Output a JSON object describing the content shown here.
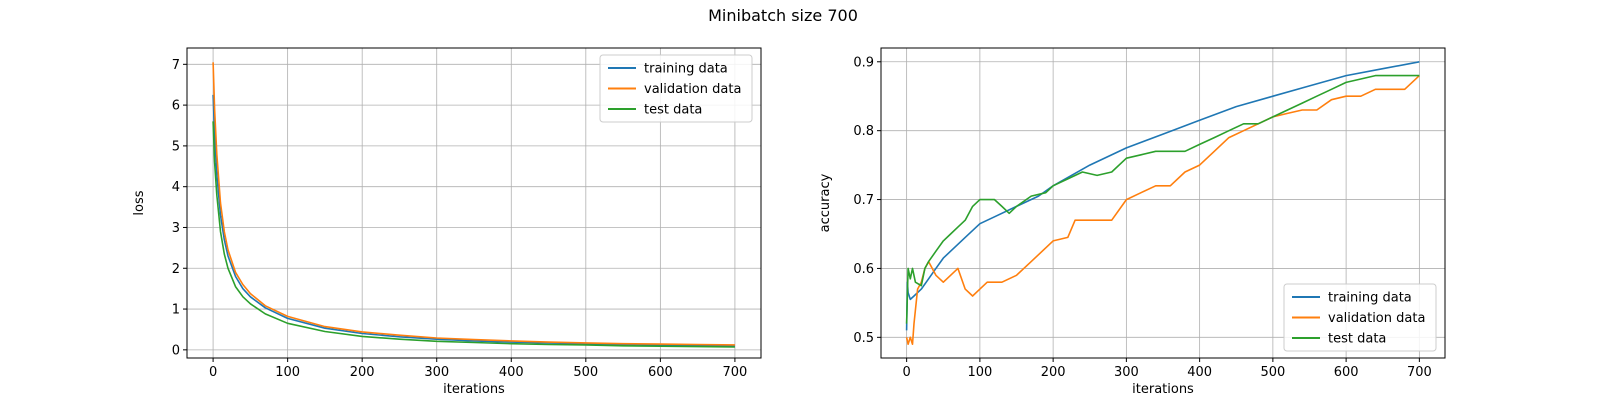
{
  "figure": {
    "title": "Minibatch size 700"
  },
  "chart_data": [
    {
      "type": "line",
      "title": "",
      "xlabel": "iterations",
      "ylabel": "loss",
      "xlim": [
        -35,
        735
      ],
      "ylim": [
        -0.2,
        7.4
      ],
      "xticks": [
        0,
        100,
        200,
        300,
        400,
        500,
        600,
        700
      ],
      "yticks": [
        0,
        1,
        2,
        3,
        4,
        5,
        6,
        7
      ],
      "grid": true,
      "legend_position": "top-right",
      "series": [
        {
          "name": "training data",
          "color": "#1f77b4",
          "points": [
            [
              0,
              6.25
            ],
            [
              2,
              5.3
            ],
            [
              5,
              4.3
            ],
            [
              10,
              3.3
            ],
            [
              15,
              2.7
            ],
            [
              20,
              2.3
            ],
            [
              30,
              1.8
            ],
            [
              40,
              1.5
            ],
            [
              50,
              1.3
            ],
            [
              70,
              1.03
            ],
            [
              100,
              0.77
            ],
            [
              150,
              0.53
            ],
            [
              200,
              0.4
            ],
            [
              250,
              0.32
            ],
            [
              300,
              0.26
            ],
            [
              350,
              0.22
            ],
            [
              400,
              0.19
            ],
            [
              450,
              0.17
            ],
            [
              500,
              0.15
            ],
            [
              550,
              0.13
            ],
            [
              600,
              0.12
            ],
            [
              650,
              0.11
            ],
            [
              700,
              0.1
            ]
          ]
        },
        {
          "name": "validation data",
          "color": "#ff7f0e",
          "points": [
            [
              0,
              7.05
            ],
            [
              2,
              5.9
            ],
            [
              5,
              4.8
            ],
            [
              10,
              3.6
            ],
            [
              15,
              2.9
            ],
            [
              20,
              2.45
            ],
            [
              30,
              1.9
            ],
            [
              40,
              1.6
            ],
            [
              50,
              1.38
            ],
            [
              70,
              1.08
            ],
            [
              100,
              0.82
            ],
            [
              150,
              0.57
            ],
            [
              200,
              0.44
            ],
            [
              250,
              0.36
            ],
            [
              300,
              0.29
            ],
            [
              350,
              0.25
            ],
            [
              400,
              0.22
            ],
            [
              450,
              0.19
            ],
            [
              500,
              0.17
            ],
            [
              550,
              0.15
            ],
            [
              600,
              0.14
            ],
            [
              650,
              0.13
            ],
            [
              700,
              0.12
            ]
          ]
        },
        {
          "name": "test data",
          "color": "#2ca02c",
          "points": [
            [
              0,
              5.6
            ],
            [
              2,
              4.6
            ],
            [
              5,
              3.8
            ],
            [
              10,
              2.9
            ],
            [
              15,
              2.35
            ],
            [
              20,
              2.0
            ],
            [
              30,
              1.55
            ],
            [
              40,
              1.3
            ],
            [
              50,
              1.13
            ],
            [
              70,
              0.88
            ],
            [
              100,
              0.65
            ],
            [
              150,
              0.45
            ],
            [
              200,
              0.33
            ],
            [
              250,
              0.26
            ],
            [
              300,
              0.21
            ],
            [
              350,
              0.18
            ],
            [
              400,
              0.15
            ],
            [
              450,
              0.13
            ],
            [
              500,
              0.12
            ],
            [
              550,
              0.1
            ],
            [
              600,
              0.09
            ],
            [
              650,
              0.08
            ],
            [
              700,
              0.07
            ]
          ]
        }
      ]
    },
    {
      "type": "line",
      "title": "",
      "xlabel": "iterations",
      "ylabel": "accuracy",
      "xlim": [
        -35,
        735
      ],
      "ylim": [
        0.47,
        0.92
      ],
      "xticks": [
        0,
        100,
        200,
        300,
        400,
        500,
        600,
        700
      ],
      "yticks": [
        0.5,
        0.6,
        0.7,
        0.8,
        0.9
      ],
      "grid": true,
      "legend_position": "bottom-right",
      "series": [
        {
          "name": "training data",
          "color": "#1f77b4",
          "points": [
            [
              0,
              0.51
            ],
            [
              1,
              0.58
            ],
            [
              2,
              0.565
            ],
            [
              5,
              0.555
            ],
            [
              10,
              0.56
            ],
            [
              20,
              0.57
            ],
            [
              30,
              0.585
            ],
            [
              40,
              0.6
            ],
            [
              50,
              0.615
            ],
            [
              60,
              0.625
            ],
            [
              80,
              0.645
            ],
            [
              100,
              0.665
            ],
            [
              120,
              0.675
            ],
            [
              150,
              0.69
            ],
            [
              180,
              0.705
            ],
            [
              200,
              0.72
            ],
            [
              250,
              0.75
            ],
            [
              300,
              0.775
            ],
            [
              350,
              0.795
            ],
            [
              400,
              0.815
            ],
            [
              450,
              0.835
            ],
            [
              500,
              0.85
            ],
            [
              550,
              0.865
            ],
            [
              600,
              0.88
            ],
            [
              650,
              0.89
            ],
            [
              700,
              0.9
            ]
          ]
        },
        {
          "name": "validation data",
          "color": "#ff7f0e",
          "points": [
            [
              0,
              0.5
            ],
            [
              2,
              0.49
            ],
            [
              5,
              0.5
            ],
            [
              8,
              0.49
            ],
            [
              10,
              0.52
            ],
            [
              15,
              0.57
            ],
            [
              20,
              0.58
            ],
            [
              25,
              0.6
            ],
            [
              30,
              0.61
            ],
            [
              40,
              0.59
            ],
            [
              50,
              0.58
            ],
            [
              60,
              0.59
            ],
            [
              70,
              0.6
            ],
            [
              80,
              0.57
            ],
            [
              90,
              0.56
            ],
            [
              100,
              0.57
            ],
            [
              110,
              0.58
            ],
            [
              130,
              0.58
            ],
            [
              150,
              0.59
            ],
            [
              170,
              0.61
            ],
            [
              180,
              0.62
            ],
            [
              200,
              0.64
            ],
            [
              220,
              0.645
            ],
            [
              230,
              0.67
            ],
            [
              260,
              0.67
            ],
            [
              280,
              0.67
            ],
            [
              300,
              0.7
            ],
            [
              320,
              0.71
            ],
            [
              340,
              0.72
            ],
            [
              360,
              0.72
            ],
            [
              380,
              0.74
            ],
            [
              400,
              0.75
            ],
            [
              420,
              0.77
            ],
            [
              440,
              0.79
            ],
            [
              460,
              0.8
            ],
            [
              480,
              0.81
            ],
            [
              500,
              0.82
            ],
            [
              520,
              0.825
            ],
            [
              540,
              0.83
            ],
            [
              560,
              0.83
            ],
            [
              580,
              0.845
            ],
            [
              600,
              0.85
            ],
            [
              620,
              0.85
            ],
            [
              640,
              0.86
            ],
            [
              660,
              0.86
            ],
            [
              680,
              0.86
            ],
            [
              700,
              0.88
            ]
          ]
        },
        {
          "name": "test data",
          "color": "#2ca02c",
          "points": [
            [
              0,
              0.52
            ],
            [
              2,
              0.6
            ],
            [
              5,
              0.585
            ],
            [
              8,
              0.6
            ],
            [
              12,
              0.58
            ],
            [
              20,
              0.575
            ],
            [
              25,
              0.6
            ],
            [
              30,
              0.61
            ],
            [
              40,
              0.625
            ],
            [
              50,
              0.64
            ],
            [
              60,
              0.65
            ],
            [
              70,
              0.66
            ],
            [
              80,
              0.67
            ],
            [
              90,
              0.69
            ],
            [
              100,
              0.7
            ],
            [
              110,
              0.7
            ],
            [
              120,
              0.7
            ],
            [
              130,
              0.69
            ],
            [
              140,
              0.68
            ],
            [
              150,
              0.69
            ],
            [
              170,
              0.705
            ],
            [
              190,
              0.71
            ],
            [
              200,
              0.72
            ],
            [
              220,
              0.73
            ],
            [
              240,
              0.74
            ],
            [
              260,
              0.735
            ],
            [
              280,
              0.74
            ],
            [
              300,
              0.76
            ],
            [
              320,
              0.765
            ],
            [
              340,
              0.77
            ],
            [
              360,
              0.77
            ],
            [
              380,
              0.77
            ],
            [
              400,
              0.78
            ],
            [
              420,
              0.79
            ],
            [
              440,
              0.8
            ],
            [
              460,
              0.81
            ],
            [
              480,
              0.81
            ],
            [
              500,
              0.82
            ],
            [
              520,
              0.83
            ],
            [
              540,
              0.84
            ],
            [
              560,
              0.85
            ],
            [
              580,
              0.86
            ],
            [
              600,
              0.87
            ],
            [
              620,
              0.875
            ],
            [
              640,
              0.88
            ],
            [
              660,
              0.88
            ],
            [
              680,
              0.88
            ],
            [
              700,
              0.88
            ]
          ]
        }
      ]
    }
  ]
}
